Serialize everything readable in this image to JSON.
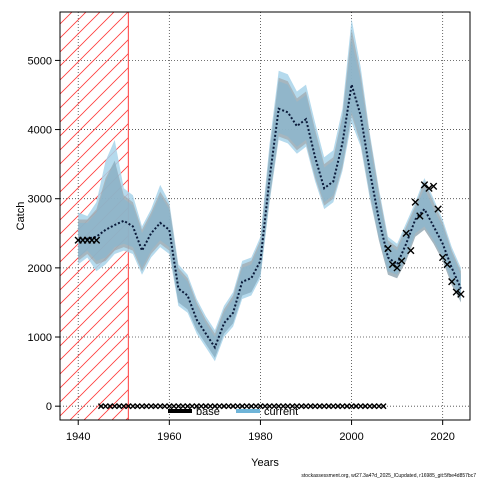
{
  "chart_data": {
    "type": "line",
    "xlabel": "Years",
    "ylabel": "Catch",
    "xlim": [
      1936,
      2026
    ],
    "ylim": [
      -200,
      5700
    ],
    "x_ticks": [
      1940,
      1960,
      1980,
      2000,
      2020
    ],
    "y_ticks": [
      0,
      1000,
      2000,
      3000,
      4000,
      5000
    ],
    "grid": true,
    "hatched_period": [
      1936,
      1951
    ],
    "colors": {
      "current_band_light": "#a8d4ea",
      "current_band_dark": "#7fb7d3",
      "base_band": "#999999",
      "median_line": "#0a1a3a",
      "observed": "#000000",
      "hatch": "#ff3b3b"
    },
    "legend": {
      "placement": "bottom-center",
      "entries": [
        {
          "label": "base",
          "color": "#000000"
        },
        {
          "label": "current",
          "color": "#6fb4d8"
        }
      ]
    },
    "median": {
      "x": [
        1940,
        1942,
        1944,
        1946,
        1948,
        1950,
        1952,
        1954,
        1956,
        1958,
        1960,
        1962,
        1964,
        1966,
        1968,
        1970,
        1972,
        1974,
        1976,
        1978,
        1980,
        1982,
        1984,
        1986,
        1988,
        1990,
        1992,
        1994,
        1996,
        1998,
        2000,
        2002,
        2004,
        2006,
        2008,
        2010,
        2012,
        2014,
        2016,
        2018,
        2020,
        2022,
        2024
      ],
      "y": [
        2400,
        2420,
        2450,
        2550,
        2620,
        2680,
        2600,
        2250,
        2500,
        2650,
        2550,
        1700,
        1600,
        1250,
        1050,
        850,
        1200,
        1350,
        1800,
        1850,
        2100,
        3300,
        4300,
        4250,
        4050,
        4150,
        3600,
        3150,
        3250,
        3800,
        4650,
        4200,
        3400,
        2700,
        2150,
        2050,
        2350,
        2700,
        2850,
        2600,
        2350,
        2000,
        1700
      ]
    },
    "band_current_light": {
      "lower": [
        2050,
        2150,
        1950,
        2050,
        2200,
        2250,
        2200,
        1900,
        2150,
        2300,
        2200,
        1450,
        1350,
        1050,
        850,
        650,
        1000,
        1150,
        1550,
        1600,
        1850,
        2950,
        3850,
        3800,
        3650,
        3750,
        3250,
        2850,
        2950,
        3400,
        4100,
        3750,
        3000,
        2400,
        1900,
        1850,
        2100,
        2450,
        2550,
        2350,
        2100,
        1750,
        1500
      ],
      "upper": [
        2800,
        2750,
        2950,
        3550,
        3850,
        3150,
        3050,
        2600,
        2850,
        3200,
        2950,
        2050,
        1900,
        1550,
        1300,
        1100,
        1450,
        1650,
        2100,
        2150,
        2450,
        3800,
        4850,
        4800,
        4550,
        4650,
        4100,
        3600,
        3700,
        4300,
        5600,
        4900,
        3950,
        3150,
        2450,
        2350,
        2650,
        2950,
        3300,
        3000,
        2700,
        2300,
        2000
      ]
    },
    "band_current_dark": {
      "lower": [
        2150,
        2250,
        2100,
        2150,
        2300,
        2350,
        2300,
        2000,
        2250,
        2400,
        2300,
        1500,
        1400,
        1100,
        900,
        700,
        1050,
        1200,
        1600,
        1650,
        1900,
        3050,
        3950,
        3900,
        3750,
        3850,
        3350,
        2950,
        3050,
        3500,
        4250,
        3850,
        3100,
        2450,
        1950,
        1900,
        2150,
        2500,
        2600,
        2400,
        2150,
        1800,
        1550
      ],
      "upper": [
        2650,
        2650,
        2800,
        3250,
        3550,
        3000,
        2900,
        2500,
        2750,
        3050,
        2850,
        1950,
        1800,
        1450,
        1200,
        1000,
        1350,
        1550,
        2000,
        2050,
        2350,
        3650,
        4700,
        4650,
        4400,
        4500,
        3950,
        3450,
        3550,
        4150,
        5300,
        4700,
        3800,
        3000,
        2350,
        2250,
        2550,
        2850,
        3150,
        2850,
        2600,
        2200,
        1900
      ]
    },
    "band_base": {
      "lower": [
        2100,
        2200,
        2050,
        2100,
        2250,
        2300,
        2250,
        1950,
        2200,
        2350,
        2250,
        1500,
        1400,
        1100,
        900,
        700,
        1050,
        1200,
        1600,
        1650,
        1900,
        3000,
        3900,
        3850,
        3700,
        3800,
        3300,
        2900,
        3000,
        3450,
        4200,
        3800,
        3050,
        2400,
        1900,
        1850,
        2100,
        2450,
        2550,
        2350,
        2100,
        1750,
        1500
      ],
      "upper": [
        2700,
        2700,
        2850,
        3300,
        3550,
        3050,
        2950,
        2550,
        2800,
        3100,
        2900,
        2000,
        1850,
        1500,
        1250,
        1050,
        1400,
        1600,
        2050,
        2100,
        2400,
        3700,
        4750,
        4700,
        4450,
        4550,
        4000,
        3500,
        3600,
        4200,
        5450,
        4800,
        3900,
        3100,
        2400,
        2300,
        2600,
        2900,
        3250,
        2950,
        2650,
        2250,
        1950
      ]
    },
    "observed_catch": {
      "x": [
        1940,
        1941,
        1942,
        1943,
        1944,
        2008,
        2009,
        2010,
        2011,
        2012,
        2013,
        2014,
        2015,
        2016,
        2017,
        2018,
        2019,
        2020,
        2021,
        2022,
        2023,
        2024
      ],
      "y": [
        2400,
        2400,
        2400,
        2400,
        2400,
        2280,
        2050,
        2000,
        2100,
        2500,
        2250,
        2950,
        2750,
        3200,
        3150,
        3180,
        2850,
        2150,
        2050,
        1800,
        1650,
        1620
      ]
    },
    "zero_catch_years": {
      "x": [
        1945,
        1946,
        1947,
        1948,
        1949,
        1950,
        1951,
        1952,
        1953,
        1954,
        1955,
        1956,
        1957,
        1958,
        1959,
        1960,
        1961,
        1962,
        1963,
        1964,
        1965,
        1966,
        1967,
        1968,
        1969,
        1970,
        1971,
        1972,
        1973,
        1974,
        1975,
        1976,
        1977,
        1978,
        1979,
        1980,
        1981,
        1982,
        1983,
        1984,
        1985,
        1986,
        1987,
        1988,
        1989,
        1990,
        1991,
        1992,
        1993,
        1994,
        1995,
        1996,
        1997,
        1998,
        1999,
        2000,
        2001,
        2002,
        2003,
        2004,
        2005,
        2006,
        2007
      ],
      "y": 0
    }
  },
  "footer_text": "stockassessment.org, wt27.3a4?d_2025_lCupdated, r16985_git:5fbe4d857bc7"
}
